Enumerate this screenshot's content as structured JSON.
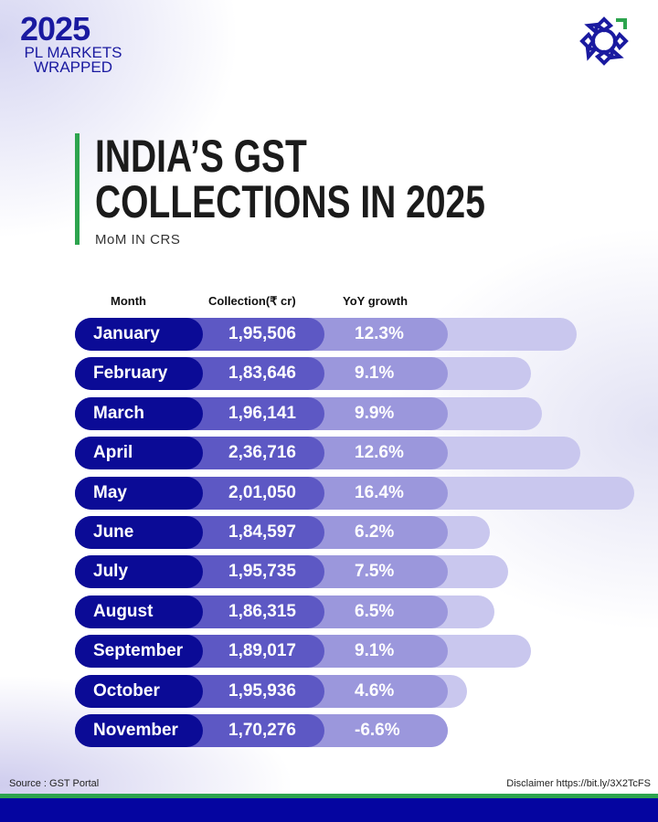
{
  "header": {
    "logo_year": "2025",
    "logo_line1": "PL MARKETS",
    "logo_line2": "WRAPPED"
  },
  "title": {
    "line1": "INDIA’S GST",
    "line2": "COLLECTIONS IN 2025",
    "subtitle": "MoM IN CRS"
  },
  "colors": {
    "accent_green": "#2da44e",
    "navy": "#0b0b96",
    "collection": "#5d58c4",
    "yoy": "#9b97dc",
    "bar": "#c9c7ee"
  },
  "chart_data": {
    "type": "bar",
    "orientation": "horizontal",
    "columns": [
      "Month",
      "Collection(₹ cr)",
      "YoY growth"
    ],
    "categories": [
      "January",
      "February",
      "March",
      "April",
      "May",
      "June",
      "July",
      "August",
      "September",
      "October",
      "November"
    ],
    "collection": [
      "1,95,506",
      "1,83,646",
      "1,96,141",
      "2,36,716",
      "2,01,050",
      "1,84,597",
      "1,95,735",
      "1,86,315",
      "1,89,017",
      "1,95,936",
      "1,70,276"
    ],
    "yoy_growth": [
      "12.3%",
      "9.1%",
      "9.9%",
      "12.6%",
      "16.4%",
      "6.2%",
      "7.5%",
      "6.5%",
      "9.1%",
      "4.6%",
      "-6.6%"
    ],
    "values": [
      12.3,
      9.1,
      9.9,
      12.6,
      16.4,
      6.2,
      7.5,
      6.5,
      9.1,
      4.6,
      -6.6
    ]
  },
  "footer": {
    "source": "Source : GST Portal",
    "disclaimer": "Disclaimer https://bit.ly/3X2TcFS"
  }
}
